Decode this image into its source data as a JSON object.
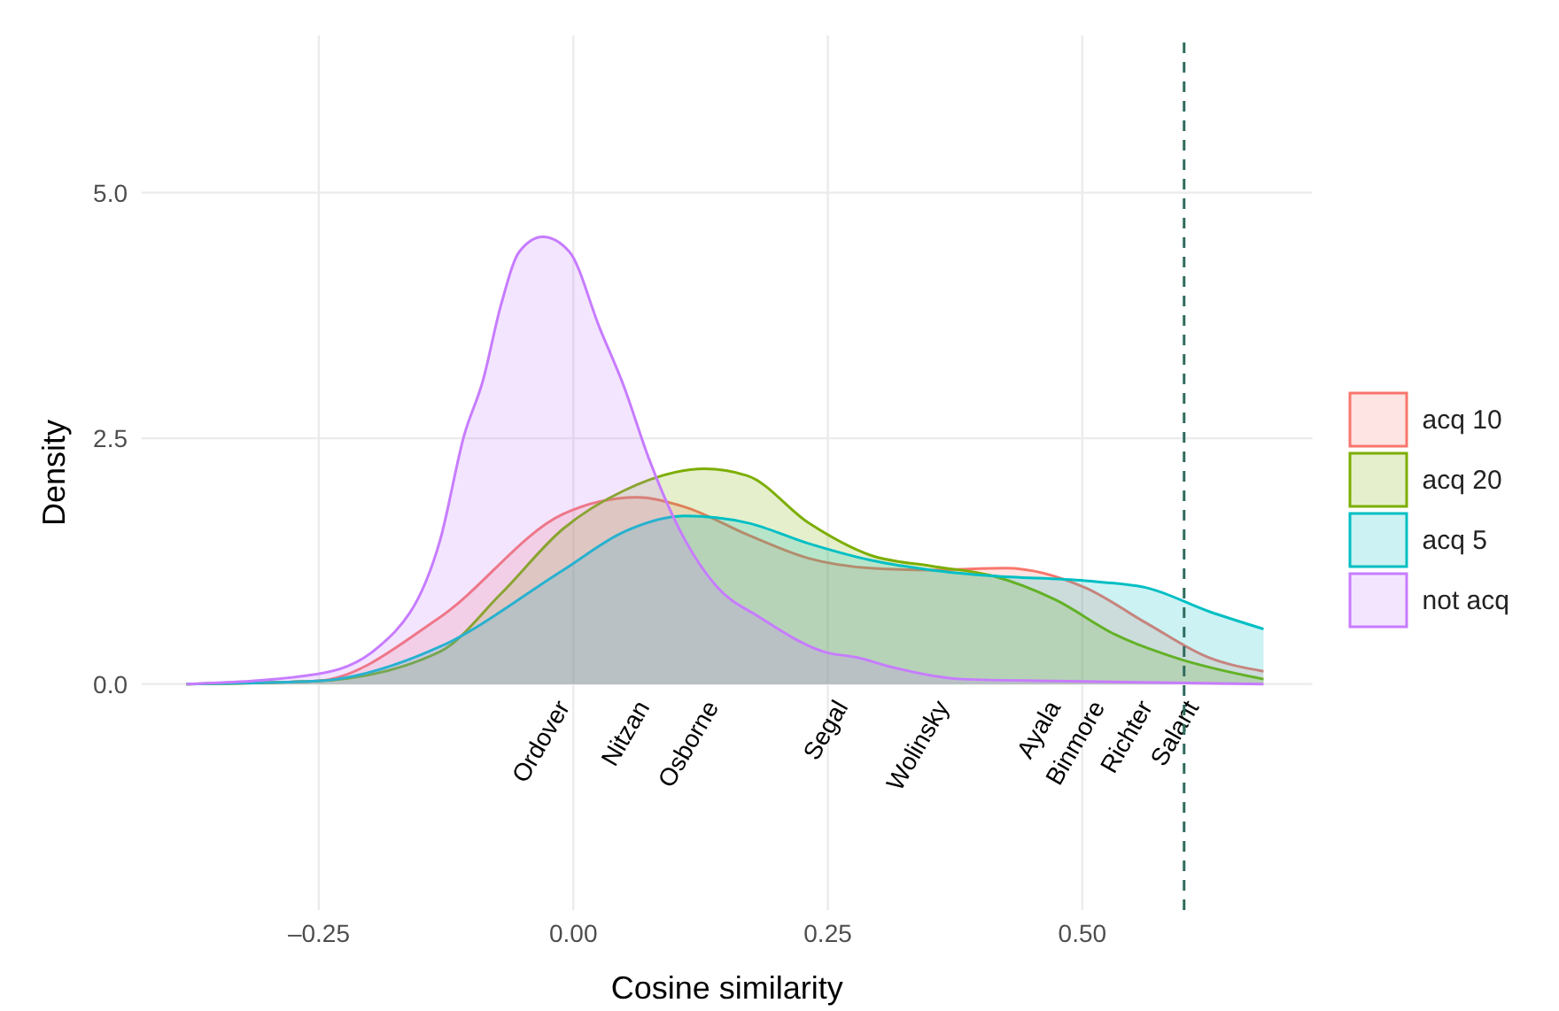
{
  "chart_data": {
    "type": "area",
    "xlabel": "Cosine similarity",
    "ylabel": "Density",
    "xlim": [
      -0.424,
      0.726
    ],
    "ylim": [
      -2.3,
      6.6
    ],
    "xticks": [
      {
        "value": -0.25,
        "label": "–0.25"
      },
      {
        "value": 0,
        "label": "0.00"
      },
      {
        "value": 0.25,
        "label": "0.25"
      },
      {
        "value": 0.5,
        "label": "0.50"
      }
    ],
    "yticks": [
      {
        "value": 0,
        "label": "0.0"
      },
      {
        "value": 2.5,
        "label": "2.5"
      },
      {
        "value": 5,
        "label": "5.0"
      }
    ],
    "grid": true,
    "legend": "right",
    "series": [
      {
        "name": "acq 10",
        "color": "#f8766d",
        "x": [
          -0.38,
          -0.252,
          -0.131,
          -0.01,
          0.062,
          0.11,
          0.171,
          0.231,
          0.292,
          0.352,
          0.425,
          0.503,
          0.563,
          0.624,
          0.678
        ],
        "values": [
          0,
          0.03,
          0.68,
          1.73,
          1.9,
          1.8,
          1.52,
          1.28,
          1.18,
          1.16,
          1.18,
          0.98,
          0.62,
          0.27,
          0.13
        ]
      },
      {
        "name": "acq 20",
        "color": "#7cae00",
        "x": [
          -0.38,
          -0.252,
          -0.131,
          -0.071,
          -0.01,
          0.05,
          0.129,
          0.171,
          0.231,
          0.292,
          0.352,
          0.412,
          0.473,
          0.533,
          0.594,
          0.678
        ],
        "values": [
          0,
          0.03,
          0.33,
          0.92,
          1.58,
          1.97,
          2.19,
          2.12,
          1.64,
          1.31,
          1.2,
          1.1,
          0.86,
          0.5,
          0.26,
          0.05
        ]
      },
      {
        "name": "acq 5",
        "color": "#00bfc4",
        "x": [
          -0.38,
          -0.252,
          -0.131,
          -0.01,
          0.05,
          0.11,
          0.171,
          0.231,
          0.292,
          0.352,
          0.412,
          0.503,
          0.563,
          0.624,
          0.678
        ],
        "values": [
          0,
          0.03,
          0.38,
          1.16,
          1.55,
          1.71,
          1.64,
          1.43,
          1.26,
          1.16,
          1.1,
          1.05,
          0.98,
          0.74,
          0.56
        ]
      },
      {
        "name": "not acq",
        "color": "#c77cff",
        "x": [
          -0.38,
          -0.252,
          -0.191,
          -0.131,
          -0.107,
          -0.089,
          -0.071,
          -0.053,
          -0.03,
          -0.004,
          0.026,
          0.05,
          0.074,
          0.11,
          0.141,
          0.183,
          0.249,
          0.279,
          0.31,
          0.382,
          0.473,
          0.678
        ],
        "values": [
          0,
          0.1,
          0.38,
          1.46,
          2.54,
          3.08,
          3.86,
          4.4,
          4.55,
          4.4,
          3.62,
          3.02,
          2.3,
          1.46,
          0.99,
          0.68,
          0.32,
          0.27,
          0.18,
          0.05,
          0.03,
          0
        ]
      }
    ],
    "ref_lines": [
      {
        "axis": "x",
        "value": 0.6,
        "color": "#2e6b5e",
        "line_style": "dashed"
      }
    ],
    "annotations": [
      "Ordover",
      "Nitzan",
      "Osborne",
      "Segal",
      "Wolinsky",
      "Ayala",
      "Binmore",
      "Richter",
      "Salant"
    ]
  }
}
